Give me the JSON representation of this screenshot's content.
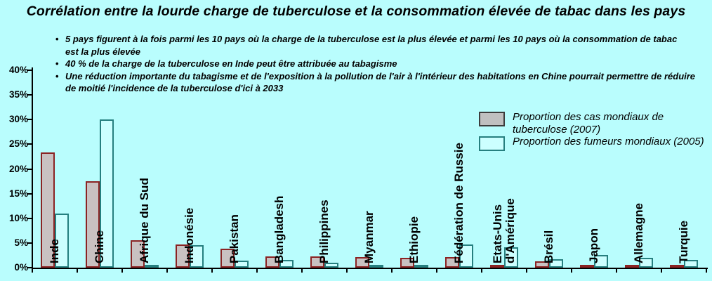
{
  "title": "Corrélation entre la lourde charge de tuberculose et la consommation élevée de tabac dans les pays",
  "bullets": [
    "5 pays figurent à la fois parmi les 10 pays où la charge de la tuberculose est la plus élevée et parmi les 10 pays où la consommation de tabac\nest la plus élevée",
    "40 % de la charge de la tuberculose en Inde peut être attribuée au tabagisme",
    "Une réduction importante du tabagisme et de l'exposition à la pollution de l'air à l'intérieur des habitations en Chine pourrait permettre de réduire\nde moitié l'incidence de la tuberculose d'ici à 2033"
  ],
  "legend": [
    {
      "label": "Proportion des cas mondiaux de\ntuberculose (2007)",
      "swatch": "tb"
    },
    {
      "label": "Proportion des fumeurs mondiaux (2005)",
      "swatch": "smoke"
    }
  ],
  "colors": {
    "background": "#b9fdfd",
    "tb_fill": "#c9c1c1",
    "tb_border": "#8b2323",
    "smokers_fill": "#ccffff",
    "smokers_border": "#267f7f",
    "legend_tb_fill": "#c0c0c0",
    "legend_tb_border": "#3d3d3d",
    "axis": "#000000",
    "text": "#000000"
  },
  "chart_data": {
    "type": "bar",
    "title": "Corrélation entre la lourde charge de tuberculose et la consommation élevée de tabac dans les pays",
    "categories": [
      "Inde",
      "Chine",
      "Afrique du Sud",
      "Indonésie",
      "Pakistan",
      "Bangladesh",
      "Philippines",
      "Myanmar",
      "Ethiopie",
      "Fédération de Russie",
      "Etats-Unis\nd'Amérique",
      "Brésil",
      "Japon",
      "Allemagne",
      "Turquie"
    ],
    "series": [
      {
        "name": "Proportion des cas mondiaux de tuberculose (2007)",
        "values": [
          23.3,
          17.5,
          5.5,
          4.7,
          3.9,
          2.3,
          2.3,
          2.1,
          2.0,
          2.2,
          0.3,
          1.3,
          0.4,
          0.3,
          0.4
        ]
      },
      {
        "name": "Proportion des fumeurs mondiaux (2005)",
        "values": [
          11.0,
          30.0,
          0.4,
          4.6,
          1.4,
          1.6,
          1.0,
          0.2,
          0.2,
          4.7,
          4.2,
          1.7,
          2.5,
          2.0,
          1.5
        ]
      }
    ],
    "xlabel": "",
    "ylabel": "",
    "ylim": [
      0,
      40
    ],
    "y_ticks": [
      "0%",
      "5%",
      "10%",
      "15%",
      "20%",
      "25%",
      "30%",
      "35%",
      "40%"
    ],
    "grid": false,
    "legend_position": "upper right"
  }
}
